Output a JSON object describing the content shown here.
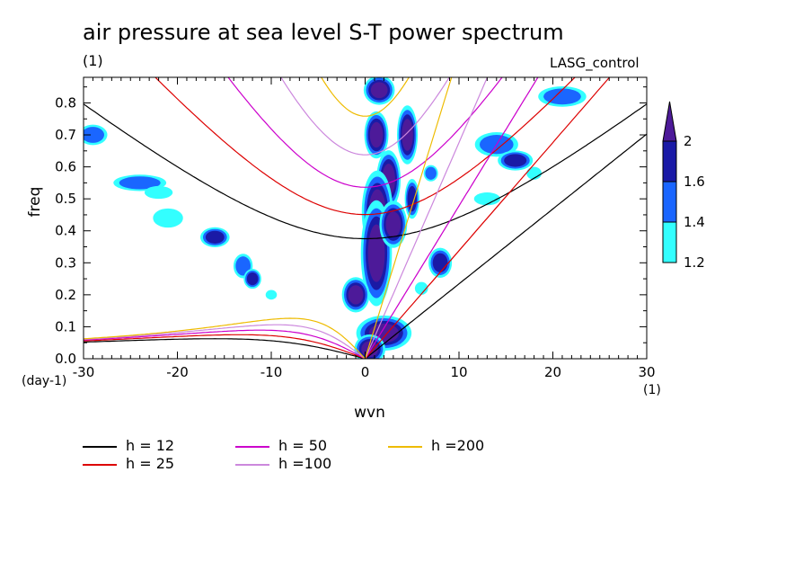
{
  "header": {
    "title": "air pressure at sea level S-T power spectrum",
    "units_label": "(1)",
    "run_name": "LASG_control"
  },
  "chart_data": {
    "type": "heatmap",
    "title": "air pressure at sea level S-T power spectrum",
    "xlabel": "wvn",
    "ylabel": "freq",
    "x_unit": "(1)",
    "y_unit": "(day-1)",
    "xlim": [
      -30,
      30
    ],
    "ylim": [
      0,
      0.88
    ],
    "x_ticks": [
      -30,
      -20,
      -10,
      0,
      10,
      20,
      30
    ],
    "x_tick_labels": [
      "-30",
      "-20",
      "-10",
      "0",
      "10",
      "20",
      "30"
    ],
    "y_ticks": [
      0,
      0.1,
      0.2,
      0.3,
      0.4,
      0.5,
      0.6,
      0.7,
      0.8
    ],
    "y_tick_labels": [
      "0.0",
      "0.1",
      "0.2",
      "0.3",
      "0.4",
      "0.5",
      "0.6",
      "0.7",
      "0.8"
    ],
    "grid": false,
    "colorbar": {
      "levels": [
        1.2,
        1.4,
        1.6,
        2
      ],
      "labels": [
        "1.2",
        "1.4",
        "1.6",
        "2"
      ],
      "colors": [
        "#33ffff",
        "#1a66ff",
        "#1a1aa6",
        "#4d1a99"
      ]
    },
    "dispersion_curves": [
      {
        "name": "h = 12",
        "h": 12,
        "color": "#000000"
      },
      {
        "name": "h = 25",
        "h": 25,
        "color": "#dd0000"
      },
      {
        "name": "h = 50",
        "h": 50,
        "color": "#cc00cc"
      },
      {
        "name": "h =100",
        "h": 100,
        "color": "#cc88dd"
      },
      {
        "name": "h =200",
        "h": 200,
        "color": "#eebb00"
      }
    ],
    "power_regions": [
      {
        "x": 1.5,
        "y": 0.84,
        "rx": 0.9,
        "ry": 0.025,
        "level": 2
      },
      {
        "x": 1.2,
        "y": 0.7,
        "rx": 0.7,
        "ry": 0.04,
        "level": 2
      },
      {
        "x": 2.5,
        "y": 0.56,
        "rx": 0.7,
        "ry": 0.05,
        "level": 2
      },
      {
        "x": 1.3,
        "y": 0.46,
        "rx": 0.9,
        "ry": 0.07,
        "level": 2
      },
      {
        "x": 1.2,
        "y": 0.33,
        "rx": 0.9,
        "ry": 0.09,
        "level": 2
      },
      {
        "x": 3.0,
        "y": 0.42,
        "rx": 0.8,
        "ry": 0.04,
        "level": 2
      },
      {
        "x": 4.5,
        "y": 0.7,
        "rx": 0.6,
        "ry": 0.05,
        "level": 2
      },
      {
        "x": 5.0,
        "y": 0.5,
        "rx": 0.5,
        "ry": 0.04,
        "level": 1.6
      },
      {
        "x": -1.0,
        "y": 0.2,
        "rx": 0.8,
        "ry": 0.03,
        "level": 2
      },
      {
        "x": 2.0,
        "y": 0.08,
        "rx": 1.6,
        "ry": 0.03,
        "level": 2
      },
      {
        "x": 0.5,
        "y": 0.03,
        "rx": 0.9,
        "ry": 0.025,
        "level": 2
      },
      {
        "x": 8.0,
        "y": 0.3,
        "rx": 0.8,
        "ry": 0.03,
        "level": 1.6
      },
      {
        "x": -24.0,
        "y": 0.55,
        "rx": 2.2,
        "ry": 0.02,
        "level": 1.4
      },
      {
        "x": -22.0,
        "y": 0.52,
        "rx": 1.5,
        "ry": 0.02,
        "level": 1.2
      },
      {
        "x": -29.0,
        "y": 0.7,
        "rx": 1.2,
        "ry": 0.025,
        "level": 1.4
      },
      {
        "x": -16.0,
        "y": 0.38,
        "rx": 1.0,
        "ry": 0.02,
        "level": 1.6
      },
      {
        "x": -13.0,
        "y": 0.29,
        "rx": 0.8,
        "ry": 0.03,
        "level": 1.4
      },
      {
        "x": -12.0,
        "y": 0.25,
        "rx": 0.6,
        "ry": 0.02,
        "level": 1.6
      },
      {
        "x": -10.0,
        "y": 0.2,
        "rx": 0.6,
        "ry": 0.015,
        "level": 1.2
      },
      {
        "x": -21.0,
        "y": 0.44,
        "rx": 1.6,
        "ry": 0.03,
        "level": 1.2
      },
      {
        "x": 14.0,
        "y": 0.67,
        "rx": 1.8,
        "ry": 0.03,
        "level": 1.4
      },
      {
        "x": 16.0,
        "y": 0.62,
        "rx": 1.2,
        "ry": 0.02,
        "level": 1.6
      },
      {
        "x": 21.0,
        "y": 0.82,
        "rx": 2.0,
        "ry": 0.025,
        "level": 1.4
      },
      {
        "x": 13.0,
        "y": 0.5,
        "rx": 1.4,
        "ry": 0.02,
        "level": 1.2
      },
      {
        "x": 7.0,
        "y": 0.58,
        "rx": 0.6,
        "ry": 0.02,
        "level": 1.4
      },
      {
        "x": 18.0,
        "y": 0.58,
        "rx": 0.8,
        "ry": 0.02,
        "level": 1.2
      },
      {
        "x": 6.0,
        "y": 0.22,
        "rx": 0.7,
        "ry": 0.02,
        "level": 1.2
      }
    ]
  },
  "legend": [
    {
      "label": "h = 12",
      "color": "#000000"
    },
    {
      "label": "h = 50",
      "color": "#cc00cc"
    },
    {
      "label": "h =200",
      "color": "#eebb00"
    },
    {
      "label": "h = 25",
      "color": "#dd0000"
    },
    {
      "label": "h =100",
      "color": "#cc88dd"
    }
  ]
}
